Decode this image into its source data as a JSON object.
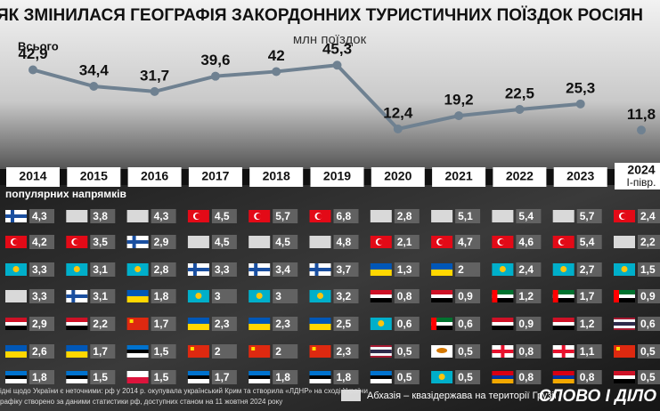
{
  "title": "ЯК ЗМІНИЛАСЯ ГЕОГРАФІЯ ЗАКОРДОННИХ ТУРИСТИЧНИХ ПОЇЗДОК РОСІЯН",
  "chart_data": {
    "type": "line",
    "subtitle": "млн поїздок",
    "color": "#6f8191",
    "categories": [
      "2014",
      "2015",
      "2016",
      "2017",
      "2018",
      "2019",
      "2020",
      "2021",
      "2022",
      "2023",
      "2024"
    ],
    "category_notes": [
      null,
      null,
      null,
      null,
      null,
      null,
      null,
      null,
      null,
      null,
      "І-півр."
    ],
    "series": [
      {
        "name": "Всього",
        "values": [
          42.9,
          34.4,
          31.7,
          39.6,
          42,
          45.3,
          12.4,
          19.2,
          22.5,
          25.3,
          null
        ],
        "value_labels": [
          "42,9",
          "34,4",
          "31,7",
          "39,6",
          "42",
          "45,3",
          "12,4",
          "19,2",
          "22,5",
          "25,3",
          null
        ]
      },
      {
        "values": [
          null,
          null,
          null,
          null,
          null,
          null,
          null,
          null,
          null,
          null,
          11.8
        ],
        "value_labels": [
          null,
          null,
          null,
          null,
          null,
          null,
          null,
          null,
          null,
          null,
          "11,8"
        ]
      }
    ]
  },
  "table": {
    "title": "популярних напрямків",
    "columns": [
      {
        "flags": [
          "fi",
          "tr",
          "kz",
          "ab",
          "eg",
          "ua",
          "ee"
        ],
        "values": [
          4.3,
          4.2,
          3.3,
          3.3,
          2.9,
          2.6,
          1.8
        ],
        "value_labels": [
          "4,3",
          "4,2",
          "3,3",
          "3,3",
          "2,9",
          "2,6",
          "1,8"
        ]
      },
      {
        "flags": [
          "ab",
          "tr",
          "kz",
          "fi",
          "eg",
          "ua",
          "ee"
        ],
        "values": [
          3.8,
          3.5,
          3.1,
          3.1,
          2.2,
          1.7,
          1.5
        ],
        "value_labels": [
          "3,8",
          "3,5",
          "3,1",
          "3,1",
          "2,2",
          "1,7",
          "1,5"
        ]
      },
      {
        "flags": [
          "ab",
          "fi",
          "kz",
          "ua",
          "cn",
          "ee",
          "pl"
        ],
        "values": [
          4.3,
          2.9,
          2.8,
          1.8,
          1.7,
          1.5,
          1.5
        ],
        "value_labels": [
          "4,3",
          "2,9",
          "2,8",
          "1,8",
          "1,7",
          "1,5",
          "1,5"
        ]
      },
      {
        "flags": [
          "tr",
          "ab",
          "fi",
          "kz",
          "ua",
          "cn",
          "ee"
        ],
        "values": [
          4.5,
          4.5,
          3.3,
          3,
          2.3,
          2,
          1.7
        ],
        "value_labels": [
          "4,5",
          "4,5",
          "3,3",
          "3",
          "2,3",
          "2",
          "1,7"
        ]
      },
      {
        "flags": [
          "tr",
          "ab",
          "fi",
          "kz",
          "ua",
          "cn",
          "ee"
        ],
        "values": [
          5.7,
          4.5,
          3.4,
          3,
          2.3,
          2,
          1.8
        ],
        "value_labels": [
          "5,7",
          "4,5",
          "3,4",
          "3",
          "2,3",
          "2",
          "1,8"
        ]
      },
      {
        "flags": [
          "tr",
          "ab",
          "fi",
          "kz",
          "ua",
          "cn",
          "ee"
        ],
        "values": [
          6.8,
          4.8,
          3.7,
          3.2,
          2.5,
          2.3,
          1.8
        ],
        "value_labels": [
          "6,8",
          "4,8",
          "3,7",
          "3,2",
          "2,5",
          "2,3",
          "1,8"
        ]
      },
      {
        "flags": [
          "ab",
          "tr",
          "ua",
          "eg",
          "kz",
          "th",
          "ee"
        ],
        "values": [
          2.8,
          2.1,
          1.3,
          0.8,
          0.6,
          0.5,
          0.5
        ],
        "value_labels": [
          "2,8",
          "2,1",
          "1,3",
          "0,8",
          "0,6",
          "0,5",
          "0,5"
        ]
      },
      {
        "flags": [
          "ab",
          "tr",
          "ua",
          "eg",
          "ae",
          "cy",
          "kz"
        ],
        "values": [
          5.1,
          4.7,
          2,
          0.9,
          0.6,
          0.5,
          0.5
        ],
        "value_labels": [
          "5,1",
          "4,7",
          "2",
          "0,9",
          "0,6",
          "0,5",
          "0,5"
        ]
      },
      {
        "flags": [
          "ab",
          "tr",
          "kz",
          "ae",
          "eg",
          "ge",
          "am"
        ],
        "values": [
          5.4,
          4.6,
          2.4,
          1.2,
          0.9,
          0.8,
          0.8
        ],
        "value_labels": [
          "5,4",
          "4,6",
          "2,4",
          "1,2",
          "0,9",
          "0,8",
          "0,8"
        ]
      },
      {
        "flags": [
          "ab",
          "tr",
          "kz",
          "ae",
          "eg",
          "ge",
          "am"
        ],
        "values": [
          5.7,
          5.4,
          2.7,
          1.7,
          1.2,
          1.1,
          0.8
        ],
        "value_labels": [
          "5,7",
          "5,4",
          "2,7",
          "1,7",
          "1,2",
          "1,1",
          "0,8"
        ]
      },
      {
        "flags": [
          "tr",
          "ab",
          "kz",
          "ae",
          "th",
          "cn",
          "eg"
        ],
        "values": [
          2.4,
          2.2,
          1.5,
          0.9,
          0.6,
          0.5,
          0.5
        ],
        "value_labels": [
          "2,4",
          "2,2",
          "1,5",
          "0,9",
          "0,6",
          "0,5",
          "0,5"
        ]
      }
    ]
  },
  "notes": [
    "ідні щодо України є неточними: рф у 2014 р. окупувала український Крим та створила «ЛДНР» на сході України",
    "рафіку створено за даними статистики рф, доступних станом на 11 жовтня 2024 року"
  ],
  "legend": {
    "flag": "ab",
    "text": "Абхазія – квазідержава на території Грузії"
  },
  "logo": "СЛОВО І ДІЛО"
}
